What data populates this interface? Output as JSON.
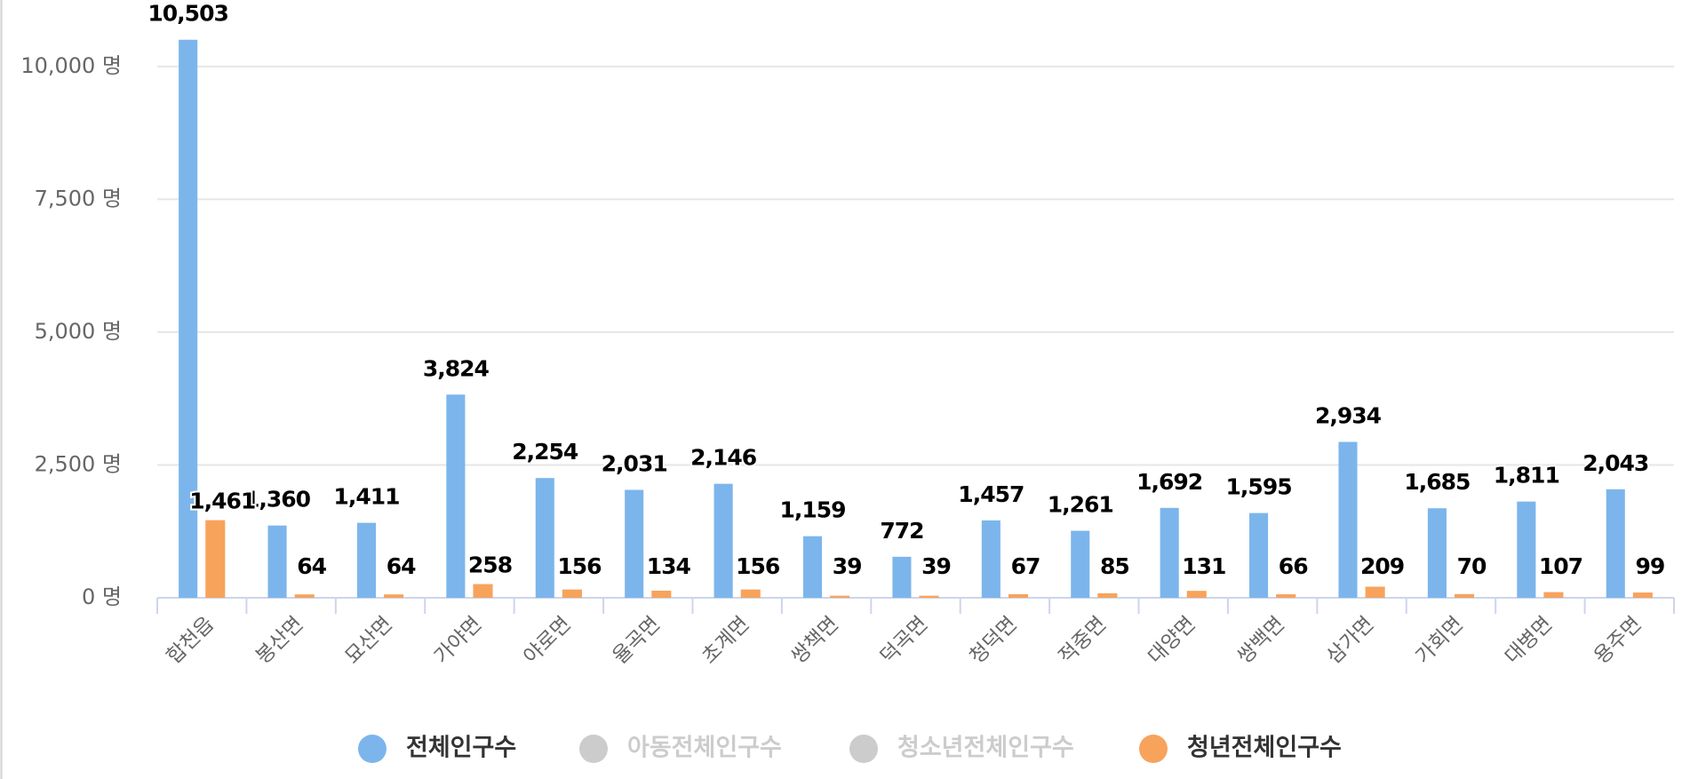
{
  "chart_data": {
    "type": "bar",
    "categories": [
      "합천읍",
      "봉산면",
      "묘산면",
      "가야면",
      "야로면",
      "율곡면",
      "초계면",
      "쌍책면",
      "덕곡면",
      "청덕면",
      "적중면",
      "대양면",
      "쌍백면",
      "삼가면",
      "가회면",
      "대병면",
      "용주면"
    ],
    "series": [
      {
        "name": "전체인구수",
        "color": "#7cb5ec",
        "visible": true,
        "values": [
          10503,
          1360,
          1411,
          3824,
          2254,
          2031,
          2146,
          1159,
          772,
          1457,
          1261,
          1692,
          1595,
          2934,
          1685,
          1811,
          2043
        ],
        "value_labels": [
          "10,503",
          "1,360",
          "1,411",
          "3,824",
          "2,254",
          "2,031",
          "2,146",
          "1,159",
          "772",
          "1,457",
          "1,261",
          "1,692",
          "1,595",
          "2,934",
          "1,685",
          "1,811",
          "2,043"
        ]
      },
      {
        "name": "아동전체인구수",
        "color": "#cccccc",
        "visible": false
      },
      {
        "name": "청소년전체인구수",
        "color": "#cccccc",
        "visible": false
      },
      {
        "name": "청년전체인구수",
        "color": "#f7a35c",
        "visible": true,
        "values": [
          1461,
          64,
          64,
          258,
          156,
          134,
          156,
          39,
          39,
          67,
          85,
          131,
          66,
          209,
          70,
          107,
          99
        ],
        "value_labels": [
          "1,461",
          "64",
          "64",
          "258",
          "156",
          "134",
          "156",
          "39",
          "39",
          "67",
          "85",
          "131",
          "66",
          "209",
          "70",
          "107",
          "99"
        ]
      }
    ],
    "ylim": [
      0,
      11000
    ],
    "yticks": [
      {
        "value": 0,
        "label": "0 명"
      },
      {
        "value": 2500,
        "label": "2,500 명"
      },
      {
        "value": 5000,
        "label": "5,000 명"
      },
      {
        "value": 7500,
        "label": "7,500 명"
      },
      {
        "value": 10000,
        "label": "10,000 명"
      }
    ],
    "grid": true,
    "legend": "bottom"
  }
}
